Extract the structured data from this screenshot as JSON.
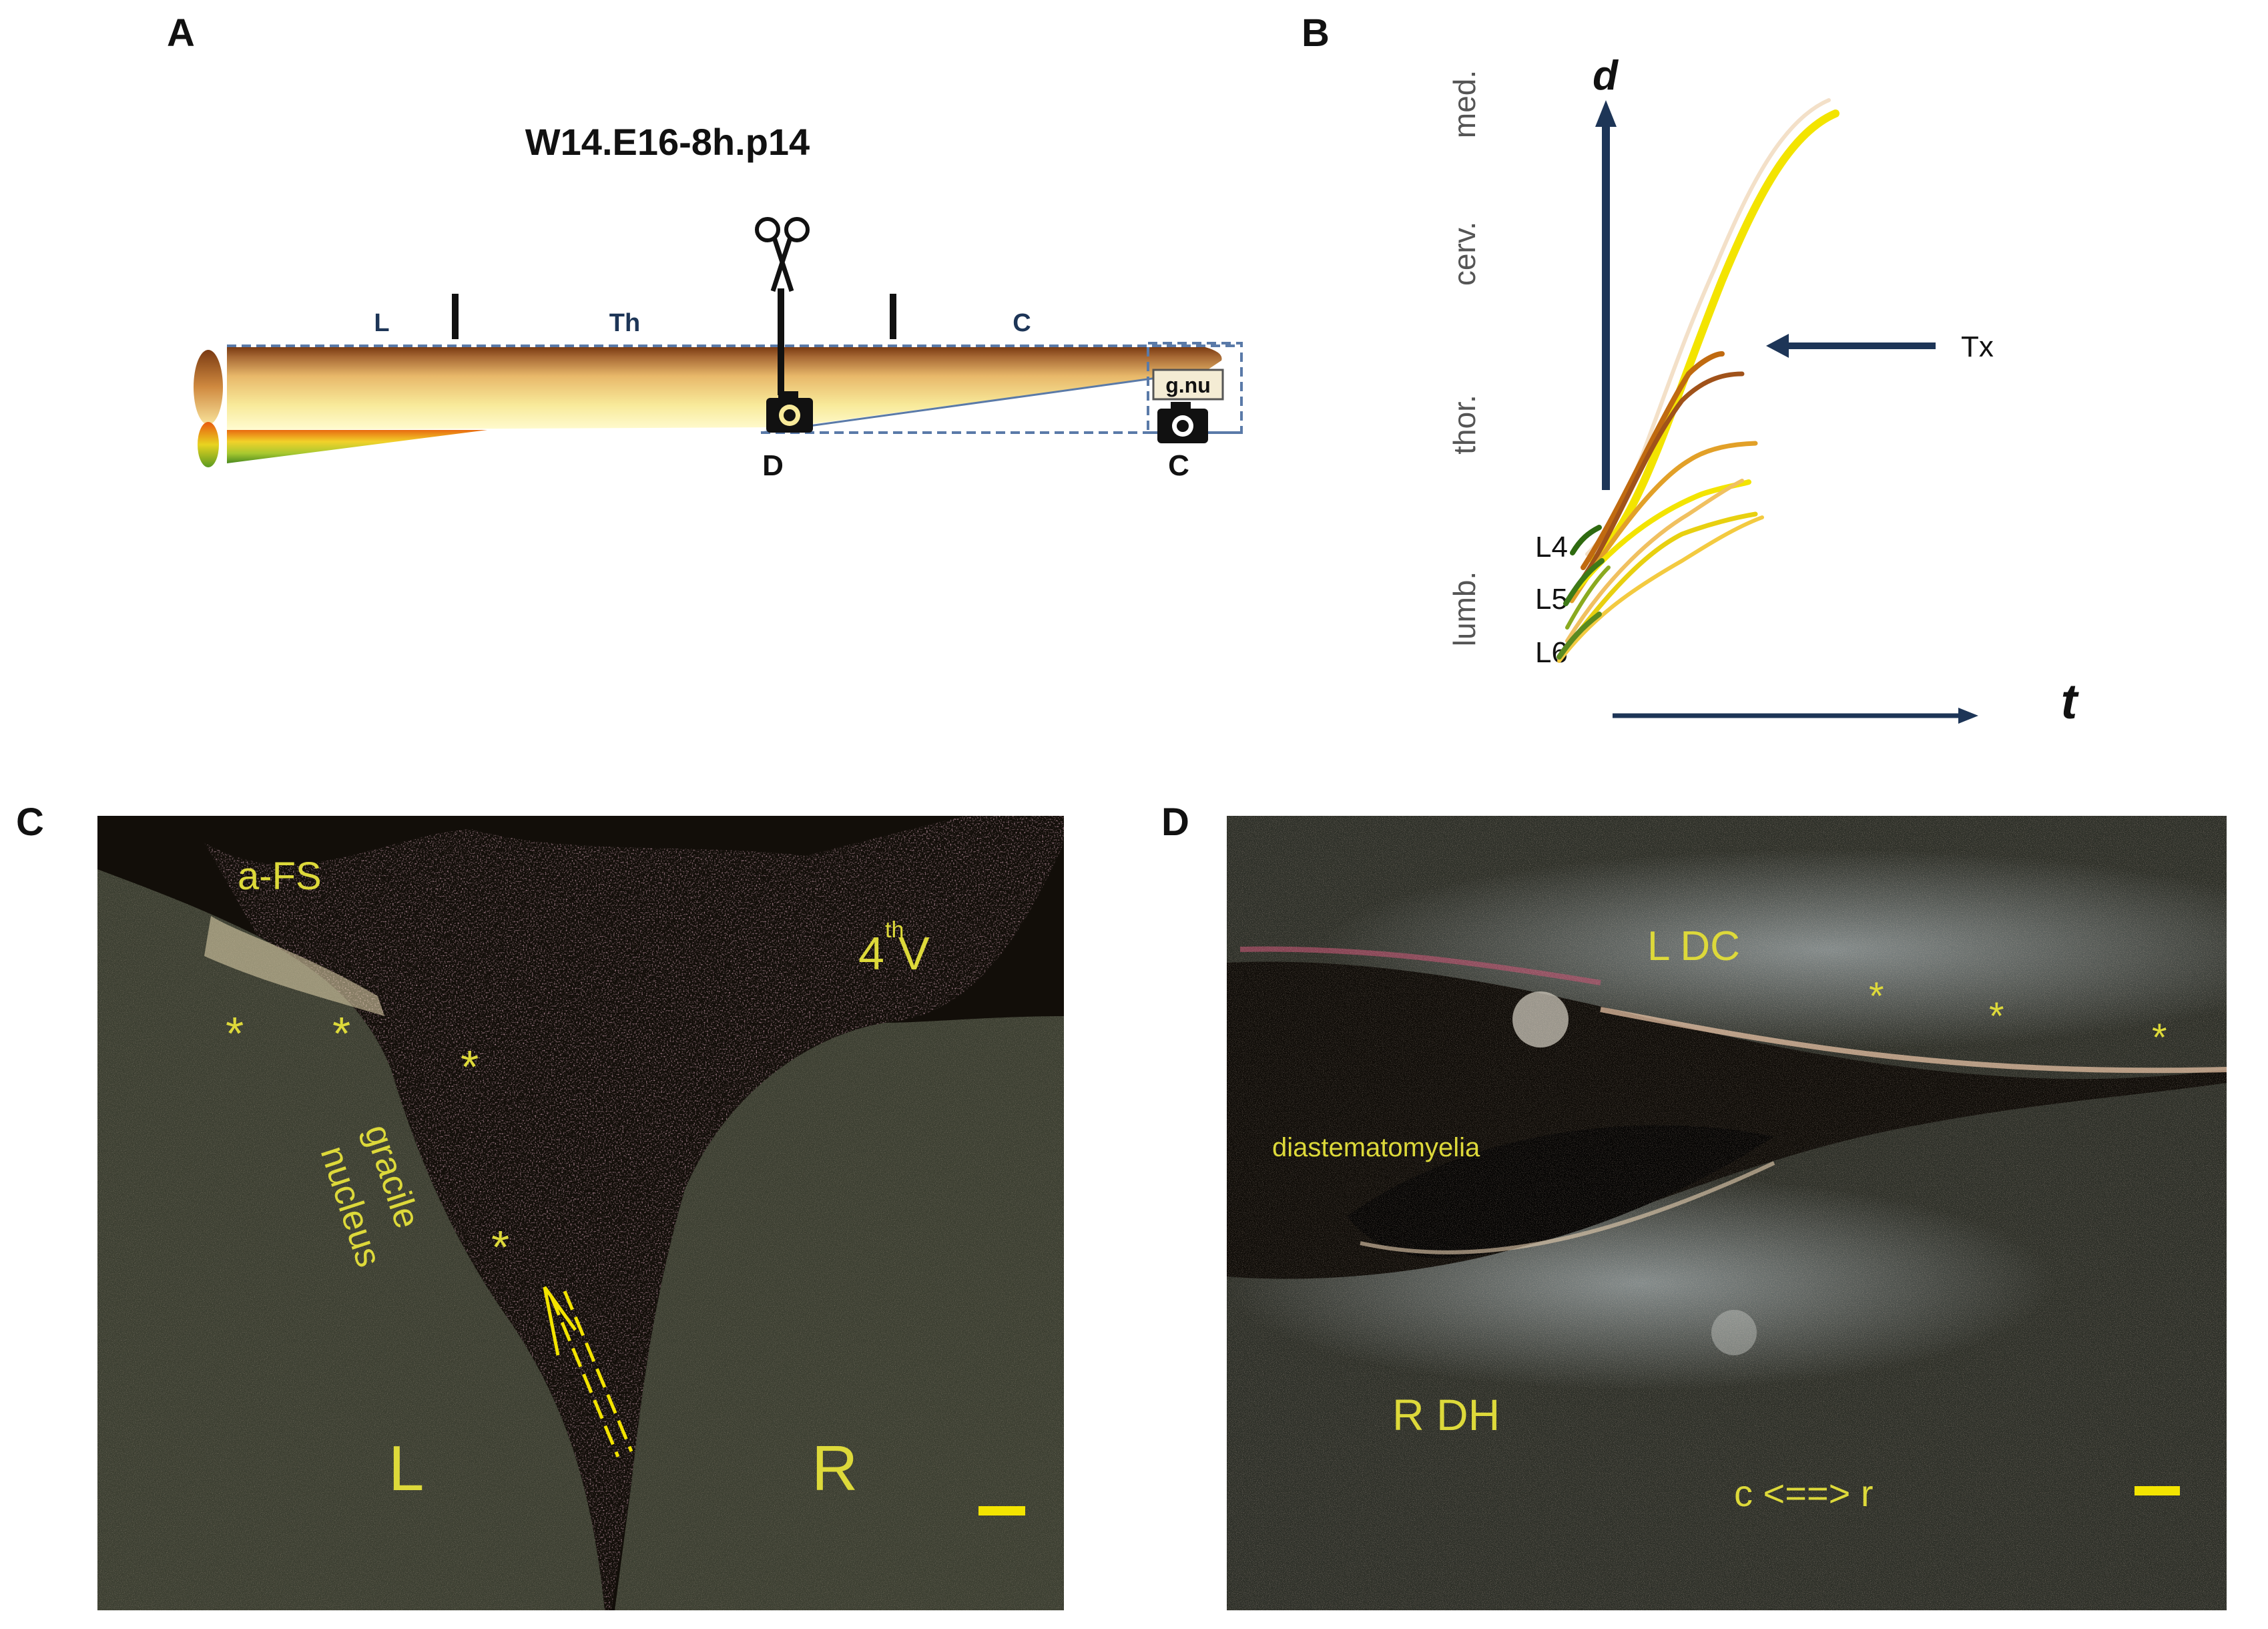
{
  "panels": {
    "A": {
      "letter": "A",
      "title": "W14.E16-8h.p14",
      "segments": [
        "L",
        "Th",
        "C"
      ],
      "box_label": "g.nu",
      "camera_labels": [
        "D",
        "C"
      ]
    },
    "B": {
      "letter": "B",
      "y_axis_label": "d",
      "x_axis_label": "t",
      "regions": [
        "med.",
        "cerv.",
        "thor.",
        "lumb."
      ],
      "levels": [
        "L4",
        "L5",
        "L6"
      ],
      "arrow_label": "Tx"
    },
    "C": {
      "letter": "C",
      "labels": {
        "a_fs": "a-FS",
        "fourth_v_num": "4",
        "fourth_v_sup": "th",
        "fourth_v_letter": "V",
        "gracile": "gracile",
        "nucleus": "nucleus",
        "left": "L",
        "right": "R",
        "star": "*"
      }
    },
    "D": {
      "letter": "D",
      "labels": {
        "l_dc": "L DC",
        "diastem": "diastematomyelia",
        "r_dh": "R DH",
        "c_r": "c <==> r",
        "star": "*"
      }
    }
  },
  "colors": {
    "navy": "#1d3557",
    "label_yellow": "#ddd93a",
    "tissue": "#3a3d30",
    "dark": "#110d08"
  }
}
